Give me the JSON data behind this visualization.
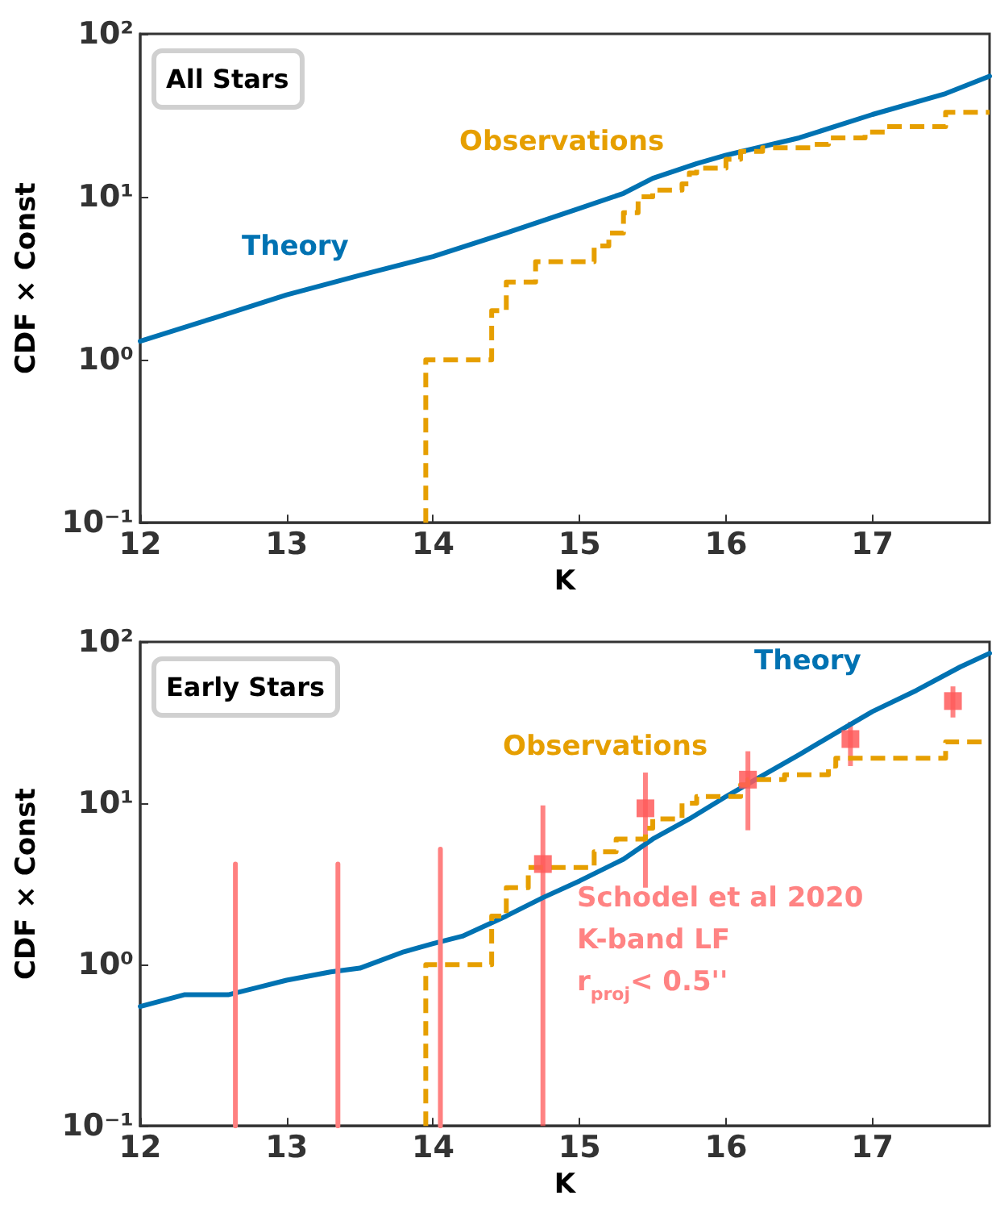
{
  "chart_data": [
    {
      "type": "line",
      "title": "All Stars",
      "xlabel": "K",
      "ylabel": "CDF × Const",
      "log": "y",
      "grid": false,
      "legend": false,
      "xlim": [
        12,
        17.8
      ],
      "xticks": [
        12,
        13,
        14,
        15,
        16,
        17
      ],
      "ylim": [
        0.1,
        100
      ],
      "yticks": [
        {
          "value": 0.1,
          "label": "10⁻¹"
        },
        {
          "value": 1,
          "label": "10⁰"
        },
        {
          "value": 10,
          "label": "10¹"
        },
        {
          "value": 100,
          "label": "10²"
        }
      ],
      "series": [
        {
          "name": "Theory",
          "type": "line",
          "color": "#0072b2",
          "line_style": "solid",
          "x": [
            12,
            12.5,
            13,
            13.5,
            14,
            14.5,
            15,
            15.3,
            15.5,
            15.8,
            16,
            16.5,
            17,
            17.5,
            17.8
          ],
          "values": [
            1.3,
            1.8,
            2.5,
            3.3,
            4.3,
            6,
            8.5,
            10.5,
            13,
            16,
            18,
            23,
            32,
            43,
            55
          ]
        },
        {
          "name": "Observations",
          "type": "step",
          "color": "#e69f00",
          "line_style": "dashed",
          "x": [
            13.95,
            13.95,
            14.4,
            14.5,
            14.7,
            15.1,
            15.2,
            15.3,
            15.4,
            15.5,
            15.7,
            15.75,
            15.8,
            16.0,
            16.1,
            16.25,
            16.6,
            16.7,
            16.95,
            17.1,
            17.5,
            17.8
          ],
          "values": [
            0.1,
            1,
            2,
            3,
            4,
            5,
            6,
            8,
            10,
            11,
            12,
            14,
            15,
            17,
            19,
            20,
            21,
            23,
            25,
            27,
            33,
            33
          ]
        }
      ]
    },
    {
      "type": "line",
      "title": "Early Stars",
      "xlabel": "K",
      "ylabel": "CDF × Const",
      "log": "y",
      "grid": false,
      "legend": false,
      "xlim": [
        12,
        17.8
      ],
      "xticks": [
        12,
        13,
        14,
        15,
        16,
        17
      ],
      "ylim": [
        0.1,
        100
      ],
      "yticks": [
        {
          "value": 0.1,
          "label": "10⁻¹"
        },
        {
          "value": 1,
          "label": "10⁰"
        },
        {
          "value": 10,
          "label": "10¹"
        },
        {
          "value": 100,
          "label": "10²"
        }
      ],
      "series": [
        {
          "name": "Theory",
          "type": "line",
          "color": "#0072b2",
          "line_style": "solid",
          "x": [
            12,
            12.3,
            12.6,
            12.8,
            13,
            13.3,
            13.5,
            13.8,
            14,
            14.2,
            14.5,
            14.75,
            15,
            15.3,
            15.5,
            15.75,
            16,
            16.2,
            16.5,
            16.8,
            17,
            17.3,
            17.6,
            17.8
          ],
          "values": [
            0.55,
            0.65,
            0.65,
            0.72,
            0.8,
            0.9,
            0.95,
            1.2,
            1.35,
            1.5,
            2,
            2.6,
            3.3,
            4.5,
            6,
            8,
            11,
            14,
            20,
            29,
            37,
            50,
            70,
            85
          ]
        },
        {
          "name": "Observations",
          "type": "step",
          "color": "#e69f00",
          "line_style": "dashed",
          "x": [
            13.95,
            13.95,
            14.4,
            14.5,
            14.65,
            15.1,
            15.25,
            15.45,
            15.5,
            15.7,
            15.8,
            16.1,
            16.15,
            16.4,
            16.7,
            16.75,
            17.5,
            17.8
          ],
          "values": [
            0.1,
            1,
            2,
            3,
            4,
            5,
            6,
            7,
            8,
            10,
            11,
            13,
            14,
            15,
            17,
            19,
            24,
            24
          ]
        },
        {
          "name": "Schodel et al 2020\nK-band LF\nr$_{proj}$< 0.5''",
          "type": "scatter",
          "color": "#ff5a5a",
          "marker": "square",
          "x": [
            14.75,
            15.45,
            16.15,
            16.85,
            17.55
          ],
          "values": [
            4.2,
            9.3,
            14,
            25,
            43
          ],
          "errors": [
            [
              0.1,
              9.7
            ],
            [
              3.0,
              15.5
            ],
            [
              6.8,
              21
            ],
            [
              17,
              32
            ],
            [
              34,
              53
            ]
          ]
        },
        {
          "type": "line",
          "color": "#ff8080",
          "line_style": "solid",
          "x": [
            12.65,
            12.65
          ],
          "values": [
            0.1,
            4.2
          ]
        },
        {
          "type": "line",
          "color": "#ff8080",
          "line_style": "solid",
          "x": [
            13.35,
            13.35
          ],
          "values": [
            0.1,
            4.2
          ]
        },
        {
          "type": "line",
          "color": "#ff8080",
          "line_style": "solid",
          "x": [
            14.05,
            14.05
          ],
          "values": [
            0.1,
            5.2
          ]
        }
      ]
    }
  ]
}
